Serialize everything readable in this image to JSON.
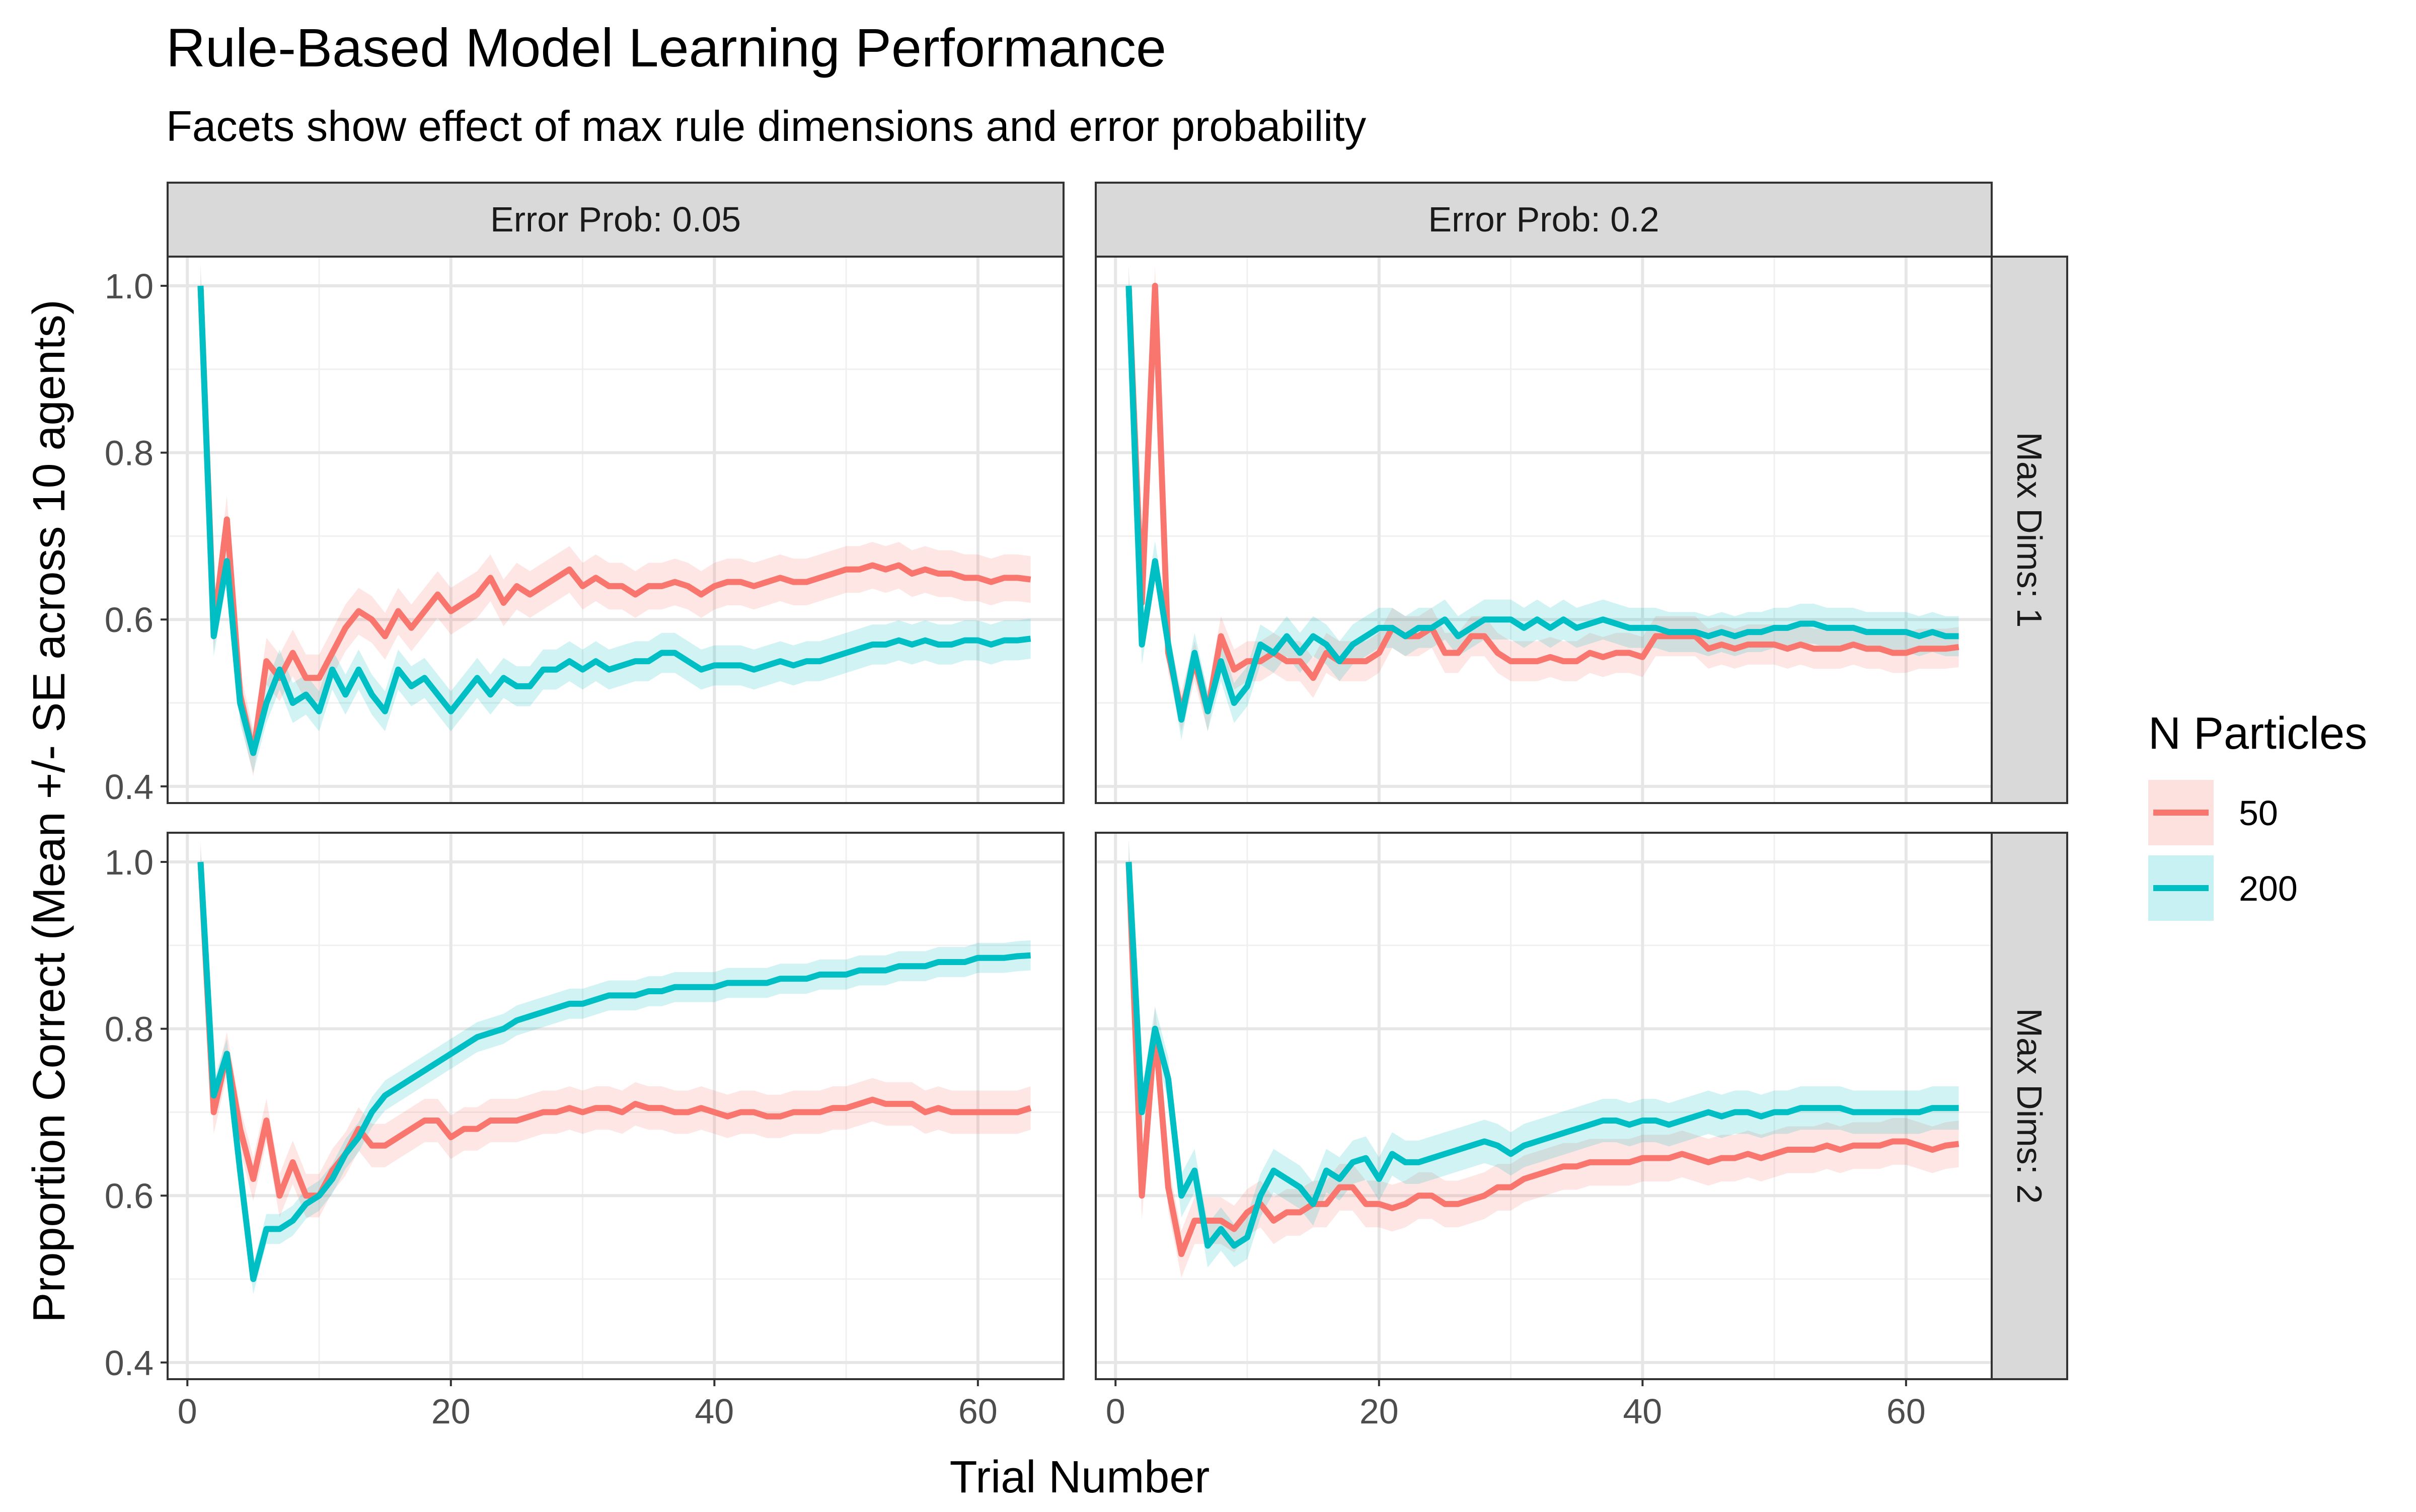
{
  "chart_data": {
    "type": "line",
    "title": "Rule-Based Model Learning Performance",
    "subtitle": "Facets show effect of max rule dimensions and error probability",
    "xlabel": "Trial Number",
    "ylabel": "Proportion Correct (Mean +/- SE across 10 agents)",
    "xlim": [
      -1.5,
      66.5
    ],
    "ylim": [
      0.38,
      1.035
    ],
    "x_ticks": [
      0,
      20,
      40,
      60
    ],
    "x_tick_labels": [
      "0",
      "20",
      "40",
      "60"
    ],
    "y_ticks": [
      0.4,
      0.6,
      0.8,
      1.0
    ],
    "y_tick_labels": [
      "0.4",
      "0.6",
      "0.8",
      "1.0"
    ],
    "grid": true,
    "legend": {
      "title": "N Particles",
      "position": "right",
      "entries": [
        {
          "label": "50",
          "color": "#F8766D"
        },
        {
          "label": "200",
          "color": "#00BFC4"
        }
      ]
    },
    "col_labels": [
      "Error Prob: 0.05",
      "Error Prob: 0.2"
    ],
    "row_labels": [
      "Max Dims: 1",
      "Max Dims: 2"
    ],
    "x": [
      1,
      2,
      3,
      4,
      5,
      6,
      7,
      8,
      9,
      10,
      11,
      12,
      13,
      14,
      15,
      16,
      17,
      18,
      19,
      20,
      21,
      22,
      23,
      24,
      25,
      26,
      27,
      28,
      29,
      30,
      31,
      32,
      33,
      34,
      35,
      36,
      37,
      38,
      39,
      40,
      41,
      42,
      43,
      44,
      45,
      46,
      47,
      48,
      49,
      50,
      51,
      52,
      53,
      54,
      55,
      56,
      57,
      58,
      59,
      60,
      61,
      62,
      63,
      64
    ],
    "panels": [
      {
        "col": 0,
        "row": 0,
        "series": [
          {
            "name": "50",
            "color": "#F8766D",
            "se": 0.028,
            "values": [
              1.0,
              0.59,
              0.72,
              0.51,
              0.44,
              0.55,
              0.53,
              0.56,
              0.53,
              0.53,
              0.56,
              0.59,
              0.61,
              0.6,
              0.58,
              0.61,
              0.59,
              0.61,
              0.63,
              0.61,
              0.62,
              0.63,
              0.65,
              0.62,
              0.64,
              0.63,
              0.64,
              0.65,
              0.66,
              0.64,
              0.65,
              0.64,
              0.64,
              0.63,
              0.64,
              0.64,
              0.645,
              0.64,
              0.63,
              0.64,
              0.645,
              0.645,
              0.64,
              0.645,
              0.65,
              0.645,
              0.645,
              0.65,
              0.655,
              0.66,
              0.66,
              0.665,
              0.66,
              0.665,
              0.655,
              0.66,
              0.655,
              0.655,
              0.65,
              0.65,
              0.645,
              0.65,
              0.65,
              0.648
            ]
          },
          {
            "name": "200",
            "color": "#00BFC4",
            "se": 0.024,
            "values": [
              1.0,
              0.58,
              0.67,
              0.5,
              0.44,
              0.5,
              0.54,
              0.5,
              0.51,
              0.49,
              0.54,
              0.51,
              0.54,
              0.51,
              0.49,
              0.54,
              0.52,
              0.53,
              0.51,
              0.49,
              0.51,
              0.53,
              0.51,
              0.53,
              0.52,
              0.52,
              0.54,
              0.54,
              0.55,
              0.54,
              0.55,
              0.54,
              0.545,
              0.55,
              0.55,
              0.56,
              0.56,
              0.55,
              0.54,
              0.545,
              0.545,
              0.545,
              0.54,
              0.545,
              0.55,
              0.545,
              0.55,
              0.55,
              0.555,
              0.56,
              0.565,
              0.57,
              0.57,
              0.575,
              0.57,
              0.575,
              0.57,
              0.57,
              0.575,
              0.575,
              0.57,
              0.575,
              0.575,
              0.577
            ]
          }
        ]
      },
      {
        "col": 1,
        "row": 0,
        "series": [
          {
            "name": "50",
            "color": "#F8766D",
            "se": 0.024,
            "values": [
              1.0,
              0.62,
              1.0,
              0.56,
              0.49,
              0.55,
              0.49,
              0.58,
              0.54,
              0.55,
              0.55,
              0.56,
              0.55,
              0.55,
              0.53,
              0.56,
              0.55,
              0.55,
              0.55,
              0.56,
              0.59,
              0.58,
              0.58,
              0.59,
              0.56,
              0.56,
              0.58,
              0.58,
              0.56,
              0.55,
              0.55,
              0.55,
              0.555,
              0.55,
              0.55,
              0.56,
              0.555,
              0.56,
              0.56,
              0.555,
              0.58,
              0.58,
              0.58,
              0.58,
              0.565,
              0.57,
              0.565,
              0.57,
              0.57,
              0.57,
              0.565,
              0.57,
              0.565,
              0.565,
              0.565,
              0.57,
              0.565,
              0.565,
              0.56,
              0.56,
              0.565,
              0.565,
              0.565,
              0.567
            ]
          },
          {
            "name": "200",
            "color": "#00BFC4",
            "se": 0.024,
            "values": [
              1.0,
              0.57,
              0.67,
              0.57,
              0.48,
              0.56,
              0.49,
              0.55,
              0.5,
              0.52,
              0.57,
              0.56,
              0.58,
              0.56,
              0.58,
              0.57,
              0.55,
              0.57,
              0.58,
              0.59,
              0.59,
              0.58,
              0.59,
              0.59,
              0.6,
              0.58,
              0.59,
              0.6,
              0.6,
              0.6,
              0.59,
              0.6,
              0.59,
              0.6,
              0.59,
              0.595,
              0.6,
              0.595,
              0.59,
              0.59,
              0.59,
              0.585,
              0.585,
              0.585,
              0.58,
              0.585,
              0.58,
              0.585,
              0.585,
              0.59,
              0.59,
              0.595,
              0.595,
              0.59,
              0.59,
              0.59,
              0.585,
              0.585,
              0.585,
              0.585,
              0.58,
              0.585,
              0.58,
              0.58
            ]
          }
        ]
      },
      {
        "col": 0,
        "row": 1,
        "series": [
          {
            "name": "50",
            "color": "#F8766D",
            "se": 0.026,
            "values": [
              1.0,
              0.7,
              0.77,
              0.68,
              0.62,
              0.69,
              0.6,
              0.64,
              0.6,
              0.6,
              0.63,
              0.65,
              0.68,
              0.66,
              0.66,
              0.67,
              0.68,
              0.69,
              0.69,
              0.67,
              0.68,
              0.68,
              0.69,
              0.69,
              0.69,
              0.695,
              0.7,
              0.7,
              0.705,
              0.7,
              0.705,
              0.705,
              0.7,
              0.71,
              0.705,
              0.705,
              0.7,
              0.7,
              0.705,
              0.7,
              0.695,
              0.7,
              0.7,
              0.695,
              0.695,
              0.7,
              0.7,
              0.7,
              0.705,
              0.705,
              0.71,
              0.715,
              0.71,
              0.71,
              0.71,
              0.7,
              0.705,
              0.7,
              0.7,
              0.7,
              0.7,
              0.7,
              0.7,
              0.705
            ]
          },
          {
            "name": "200",
            "color": "#00BFC4",
            "se": 0.018,
            "values": [
              1.0,
              0.72,
              0.77,
              0.63,
              0.5,
              0.56,
              0.56,
              0.57,
              0.59,
              0.6,
              0.62,
              0.65,
              0.67,
              0.7,
              0.72,
              0.73,
              0.74,
              0.75,
              0.76,
              0.77,
              0.78,
              0.79,
              0.795,
              0.8,
              0.81,
              0.815,
              0.82,
              0.825,
              0.83,
              0.83,
              0.835,
              0.84,
              0.84,
              0.84,
              0.845,
              0.845,
              0.85,
              0.85,
              0.85,
              0.85,
              0.855,
              0.855,
              0.855,
              0.855,
              0.86,
              0.86,
              0.86,
              0.865,
              0.865,
              0.865,
              0.87,
              0.87,
              0.87,
              0.875,
              0.875,
              0.875,
              0.88,
              0.88,
              0.88,
              0.885,
              0.885,
              0.885,
              0.887,
              0.888
            ]
          }
        ]
      },
      {
        "col": 1,
        "row": 1,
        "series": [
          {
            "name": "50",
            "color": "#F8766D",
            "se": 0.028,
            "values": [
              1.0,
              0.6,
              0.8,
              0.61,
              0.53,
              0.57,
              0.57,
              0.57,
              0.56,
              0.58,
              0.59,
              0.57,
              0.58,
              0.58,
              0.59,
              0.59,
              0.61,
              0.61,
              0.59,
              0.59,
              0.585,
              0.59,
              0.6,
              0.6,
              0.59,
              0.59,
              0.595,
              0.6,
              0.61,
              0.61,
              0.62,
              0.625,
              0.63,
              0.635,
              0.635,
              0.64,
              0.64,
              0.64,
              0.64,
              0.645,
              0.645,
              0.645,
              0.65,
              0.645,
              0.64,
              0.645,
              0.645,
              0.65,
              0.645,
              0.65,
              0.655,
              0.655,
              0.655,
              0.66,
              0.655,
              0.66,
              0.66,
              0.66,
              0.665,
              0.665,
              0.66,
              0.655,
              0.66,
              0.662
            ]
          },
          {
            "name": "200",
            "color": "#00BFC4",
            "se": 0.026,
            "values": [
              1.0,
              0.7,
              0.8,
              0.74,
              0.6,
              0.63,
              0.54,
              0.56,
              0.54,
              0.55,
              0.6,
              0.63,
              0.62,
              0.61,
              0.59,
              0.63,
              0.62,
              0.64,
              0.645,
              0.62,
              0.65,
              0.64,
              0.64,
              0.645,
              0.65,
              0.655,
              0.66,
              0.665,
              0.66,
              0.65,
              0.66,
              0.665,
              0.67,
              0.675,
              0.68,
              0.685,
              0.69,
              0.69,
              0.685,
              0.69,
              0.69,
              0.685,
              0.69,
              0.695,
              0.7,
              0.695,
              0.7,
              0.7,
              0.695,
              0.7,
              0.7,
              0.705,
              0.705,
              0.705,
              0.705,
              0.7,
              0.7,
              0.7,
              0.7,
              0.7,
              0.7,
              0.705,
              0.705,
              0.705
            ]
          }
        ]
      }
    ]
  }
}
